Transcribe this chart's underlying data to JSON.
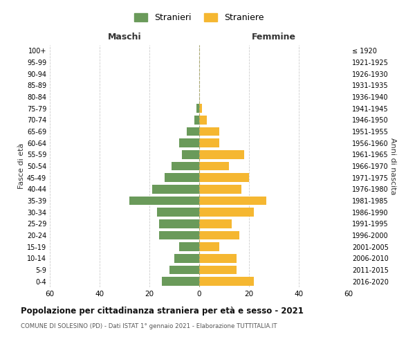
{
  "age_groups": [
    "0-4",
    "5-9",
    "10-14",
    "15-19",
    "20-24",
    "25-29",
    "30-34",
    "35-39",
    "40-44",
    "45-49",
    "50-54",
    "55-59",
    "60-64",
    "65-69",
    "70-74",
    "75-79",
    "80-84",
    "85-89",
    "90-94",
    "95-99",
    "100+"
  ],
  "birth_years": [
    "2016-2020",
    "2011-2015",
    "2006-2010",
    "2001-2005",
    "1996-2000",
    "1991-1995",
    "1986-1990",
    "1981-1985",
    "1976-1980",
    "1971-1975",
    "1966-1970",
    "1961-1965",
    "1956-1960",
    "1951-1955",
    "1946-1950",
    "1941-1945",
    "1936-1940",
    "1931-1935",
    "1926-1930",
    "1921-1925",
    "≤ 1920"
  ],
  "maschi": [
    15,
    12,
    10,
    8,
    16,
    16,
    17,
    28,
    19,
    14,
    11,
    7,
    8,
    5,
    2,
    1,
    0,
    0,
    0,
    0,
    0
  ],
  "femmine": [
    22,
    15,
    15,
    8,
    16,
    13,
    22,
    27,
    17,
    20,
    12,
    18,
    8,
    8,
    3,
    1,
    0,
    0,
    0,
    0,
    0
  ],
  "color_maschi": "#6a9a5a",
  "color_femmine": "#f5b731",
  "background_color": "#ffffff",
  "grid_color": "#cccccc",
  "title": "Popolazione per cittadinanza straniera per età e sesso - 2021",
  "subtitle": "COMUNE DI SOLESINO (PD) - Dati ISTAT 1° gennaio 2021 - Elaborazione TUTTITALIA.IT",
  "ylabel_left": "Fasce di età",
  "ylabel_right": "Anni di nascita",
  "xlabel_left": "Maschi",
  "xlabel_right": "Femmine",
  "legend_stranieri": "Stranieri",
  "legend_straniere": "Straniere",
  "xlim": 60,
  "bar_height": 0.75
}
